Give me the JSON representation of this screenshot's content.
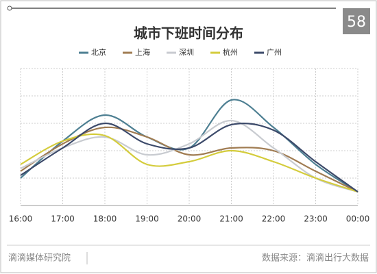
{
  "chart_data": {
    "type": "line",
    "title": "城市下班时间分布",
    "logo": "58",
    "categories": [
      "16:00",
      "17:00",
      "18:00",
      "19:00",
      "20:00",
      "21:00",
      "22:00",
      "23:00",
      "00:00"
    ],
    "ylim": [
      0,
      100
    ],
    "grid": true,
    "series": [
      {
        "name": "北京",
        "color": "#4d7f92",
        "values": [
          20,
          47,
          66,
          50,
          42,
          77,
          57,
          30,
          10
        ]
      },
      {
        "name": "上海",
        "color": "#a07c52",
        "values": [
          25,
          45,
          57,
          50,
          37,
          42,
          40,
          25,
          10
        ]
      },
      {
        "name": "深圳",
        "color": "#c8cbd0",
        "values": [
          27,
          42,
          50,
          37,
          45,
          62,
          42,
          20,
          10
        ]
      },
      {
        "name": "杭州",
        "color": "#d4cc3c",
        "values": [
          30,
          47,
          51,
          30,
          32,
          40,
          32,
          20,
          10
        ]
      },
      {
        "name": "广州",
        "color": "#3c4a6a",
        "values": [
          22,
          42,
          60,
          45,
          42,
          59,
          55,
          32,
          10
        ]
      }
    ],
    "footer": {
      "left": "滴滴媒体研究院",
      "right": "数据来源：滴滴出行大数据"
    }
  }
}
